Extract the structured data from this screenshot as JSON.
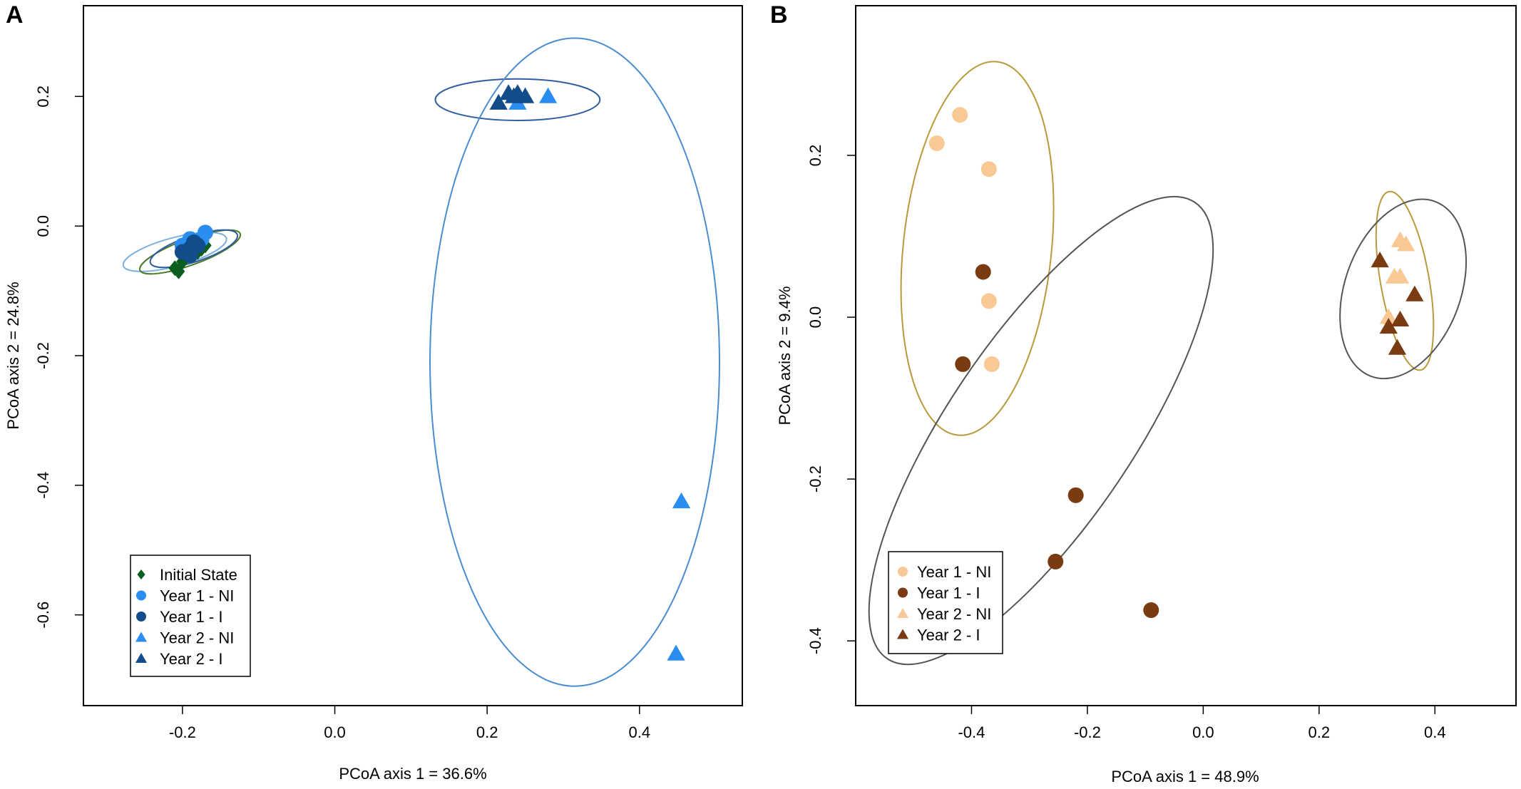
{
  "chart_data": [
    {
      "type": "scatter",
      "panel_label": "A",
      "xlabel": "PCoA axis 1 = 36.6%",
      "ylabel": "PCoA axis 2 = 24.8%",
      "xlim": [
        -0.33,
        0.535
      ],
      "ylim": [
        -0.74,
        0.34
      ],
      "xticks": [
        -0.2,
        0.0,
        0.2,
        0.4
      ],
      "xtick_labels": [
        "-0.2",
        "0.0",
        "0.2",
        "0.4"
      ],
      "yticks": [
        -0.6,
        -0.4,
        -0.2,
        0.0,
        0.2
      ],
      "ytick_labels": [
        "-0.6",
        "-0.4",
        "-0.2",
        "0.0",
        "0.2"
      ],
      "legend_position": "bottom-left",
      "series": [
        {
          "name": "Initial State",
          "marker": "diamond",
          "color": "#0a5e1e",
          "points": [
            [
              -0.21,
              -0.065
            ],
            [
              -0.205,
              -0.07
            ],
            [
              -0.2,
              -0.055
            ],
            [
              -0.19,
              -0.045
            ],
            [
              -0.18,
              -0.04
            ],
            [
              -0.17,
              -0.03
            ],
            [
              -0.175,
              -0.035
            ]
          ]
        },
        {
          "name": "Year 1 - NI",
          "marker": "circle",
          "color": "#2a8ef0",
          "points": [
            [
              -0.17,
              -0.01
            ],
            [
              -0.175,
              -0.02
            ],
            [
              -0.19,
              -0.02
            ],
            [
              -0.185,
              -0.03
            ],
            [
              -0.2,
              -0.03
            ]
          ]
        },
        {
          "name": "Year 1 - I",
          "marker": "circle",
          "color": "#134c8a",
          "points": [
            [
              -0.195,
              -0.04
            ],
            [
              -0.19,
              -0.035
            ],
            [
              -0.2,
              -0.04
            ],
            [
              -0.185,
              -0.025
            ],
            [
              -0.18,
              -0.03
            ],
            [
              -0.19,
              -0.045
            ]
          ]
        },
        {
          "name": "Year 2 - NI",
          "marker": "triangle",
          "color": "#2a8ef0",
          "points": [
            [
              0.24,
              0.19
            ],
            [
              0.28,
              0.2
            ],
            [
              0.455,
              -0.425
            ],
            [
              0.448,
              -0.66
            ]
          ]
        },
        {
          "name": "Year 2 - I",
          "marker": "triangle",
          "color": "#134c8a",
          "points": [
            [
              0.215,
              0.19
            ],
            [
              0.228,
              0.205
            ],
            [
              0.24,
              0.205
            ],
            [
              0.25,
              0.2
            ],
            [
              0.235,
              0.2
            ]
          ]
        }
      ],
      "ellipses": [
        {
          "cx": -0.21,
          "cy": -0.04,
          "rx": 0.07,
          "ry": 0.022,
          "angle": 15,
          "color": "#7db0dc"
        },
        {
          "cx": -0.19,
          "cy": -0.04,
          "rx": 0.07,
          "ry": 0.02,
          "angle": 20,
          "color": "#4a7a2a"
        },
        {
          "cx": -0.185,
          "cy": -0.035,
          "rx": 0.06,
          "ry": 0.02,
          "angle": 18,
          "color": "#2f5da0"
        },
        {
          "cx": 0.24,
          "cy": 0.195,
          "rx": 0.108,
          "ry": 0.032,
          "angle": 0,
          "color": "#2f5da0"
        },
        {
          "cx": 0.315,
          "cy": -0.21,
          "rx": 0.19,
          "ry": 0.5,
          "angle": 0,
          "color": "#4a8ccf"
        }
      ]
    },
    {
      "type": "scatter",
      "panel_label": "B",
      "xlabel": "PCoA axis 1 = 48.9%",
      "ylabel": "PCoA axis 2 = 9.4%",
      "xlim": [
        -0.6,
        0.54
      ],
      "ylim": [
        -0.48,
        0.385
      ],
      "xticks": [
        -0.4,
        -0.2,
        0.0,
        0.2,
        0.4
      ],
      "xtick_labels": [
        "-0.4",
        "-0.2",
        "0.0",
        "0.2",
        "0.4"
      ],
      "yticks": [
        -0.4,
        -0.2,
        0.0,
        0.2
      ],
      "ytick_labels": [
        "-0.4",
        "-0.2",
        "0.0",
        "0.2"
      ],
      "legend_position": "bottom-left",
      "series": [
        {
          "name": "Year 1 - NI",
          "marker": "circle",
          "color": "#f8c994",
          "points": [
            [
              -0.42,
              0.25
            ],
            [
              -0.46,
              0.215
            ],
            [
              -0.37,
              0.183
            ],
            [
              -0.37,
              0.02
            ],
            [
              -0.365,
              -0.058
            ]
          ]
        },
        {
          "name": "Year 1 - I",
          "marker": "circle",
          "color": "#7a3a12",
          "points": [
            [
              -0.38,
              0.056
            ],
            [
              -0.415,
              -0.058
            ],
            [
              -0.22,
              -0.22
            ],
            [
              -0.255,
              -0.302
            ],
            [
              -0.09,
              -0.362
            ]
          ]
        },
        {
          "name": "Year 2 - NI",
          "marker": "triangle",
          "color": "#f8c994",
          "points": [
            [
              0.34,
              0.095
            ],
            [
              0.35,
              0.09
            ],
            [
              0.33,
              0.05
            ],
            [
              0.34,
              0.05
            ],
            [
              0.32,
              0.0
            ]
          ]
        },
        {
          "name": "Year 2 - I",
          "marker": "triangle",
          "color": "#7a3a12",
          "points": [
            [
              0.305,
              0.07
            ],
            [
              0.365,
              0.028
            ],
            [
              0.34,
              -0.003
            ],
            [
              0.32,
              -0.012
            ],
            [
              0.335,
              -0.038
            ]
          ]
        }
      ],
      "ellipses": [
        {
          "cx": -0.39,
          "cy": 0.085,
          "rx": 0.128,
          "ry": 0.232,
          "angle": -6,
          "color": "#b89a3a"
        },
        {
          "cx": -0.28,
          "cy": -0.14,
          "rx": 0.16,
          "ry": 0.34,
          "angle": -34,
          "color": "#555555"
        },
        {
          "cx": 0.348,
          "cy": 0.045,
          "rx": 0.042,
          "ry": 0.112,
          "angle": 10,
          "color": "#b89a3a"
        },
        {
          "cx": 0.345,
          "cy": 0.035,
          "rx": 0.1,
          "ry": 0.115,
          "angle": -20,
          "color": "#555555"
        }
      ]
    }
  ]
}
